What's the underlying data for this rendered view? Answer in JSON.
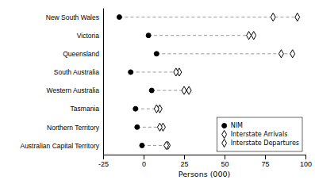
{
  "chart_data": {
    "type": "dot",
    "orientation": "horizontal",
    "categories": [
      "New South Wales",
      "Victoria",
      "Queensland",
      "South Australia",
      "Western Australia",
      "Tasmania",
      "Northern Territory",
      "Australian Capital Territory"
    ],
    "series": [
      {
        "name": "NIM",
        "color": "#000000",
        "marker": "circle",
        "values": [
          -15,
          3,
          8,
          -8,
          5,
          -5,
          -4,
          -1
        ]
      },
      {
        "name": "Interstate Arrivals",
        "color": "#000000",
        "marker": "diamond",
        "values": [
          80,
          65,
          85,
          20,
          28,
          8,
          10,
          14
        ]
      },
      {
        "name": "Interstate Departures",
        "color": "#000000",
        "marker": "diamond",
        "values": [
          95,
          68,
          92,
          22,
          25,
          10,
          12,
          15
        ]
      }
    ],
    "xlabel": "Persons (000)",
    "xlim": [
      -25,
      100
    ],
    "xticks": [
      -25,
      0,
      25,
      50,
      75,
      100
    ],
    "grid": false,
    "legend": "lower right"
  }
}
